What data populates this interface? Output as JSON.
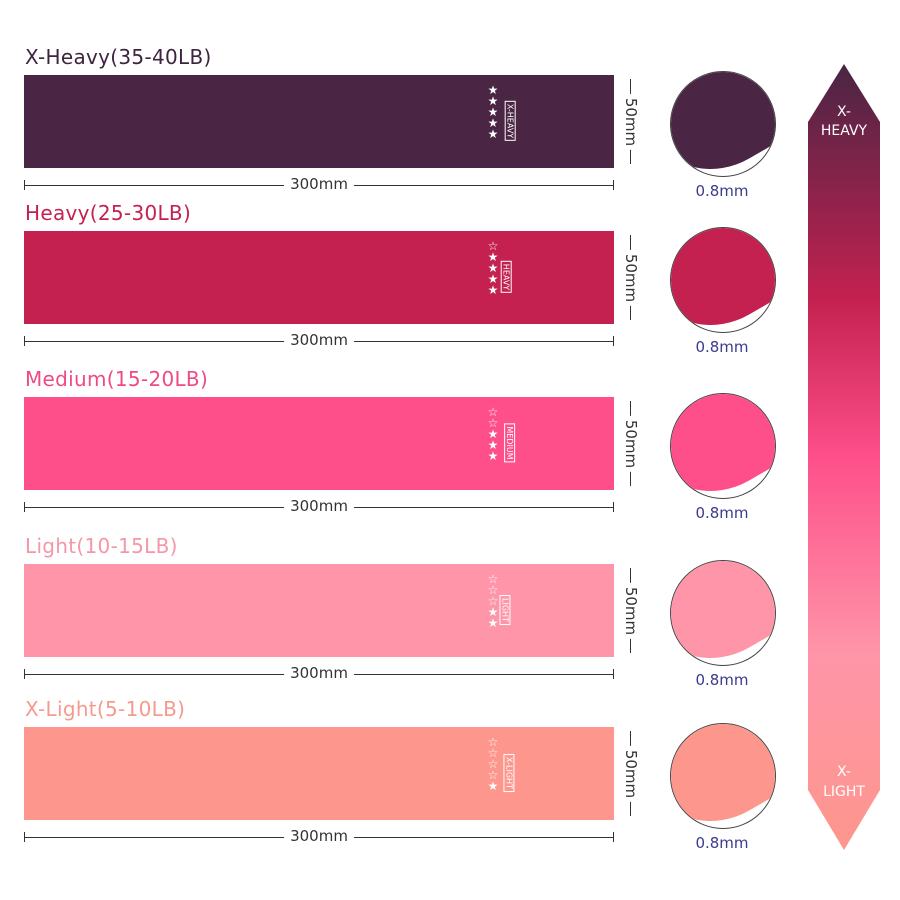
{
  "bands": [
    {
      "title": "X-Heavy(35-40LB)",
      "label": "X-HEAVY",
      "stars_filled": 5,
      "stars_total": 5,
      "color": "#4a2544",
      "title_color": "#3d2540",
      "length": "300mm",
      "width": "50mm",
      "thickness": "0.8mm"
    },
    {
      "title": "Heavy(25-30LB)",
      "label": "HEAVY",
      "stars_filled": 4,
      "stars_total": 5,
      "color": "#c42150",
      "title_color": "#c42150",
      "length": "300mm",
      "width": "50mm",
      "thickness": "0.8mm"
    },
    {
      "title": "Medium(15-20LB)",
      "label": "MEDIUM",
      "stars_filled": 3,
      "stars_total": 5,
      "color": "#fe4f8a",
      "title_color": "#f04a86",
      "length": "300mm",
      "width": "50mm",
      "thickness": "0.8mm"
    },
    {
      "title": "Light(10-15LB)",
      "label": "LIGHT",
      "stars_filled": 2,
      "stars_total": 5,
      "color": "#fe95a9",
      "title_color": "#f497a8",
      "length": "300mm",
      "width": "50mm",
      "thickness": "0.8mm"
    },
    {
      "title": "X-Light(5-10LB)",
      "label": "X-LIGHT",
      "stars_filled": 1,
      "stars_total": 5,
      "color": "#fd968c",
      "title_color": "#f59a8c",
      "length": "300mm",
      "width": "50mm",
      "thickness": "0.8mm"
    }
  ],
  "scale_arrow": {
    "top_label_1": "X-",
    "top_label_2": "HEAVY",
    "bottom_label_1": "X-",
    "bottom_label_2": "LIGHT",
    "gradient": [
      "#4a2544",
      "#c42150",
      "#fe4f8a",
      "#fe95a9",
      "#fd968c"
    ]
  }
}
